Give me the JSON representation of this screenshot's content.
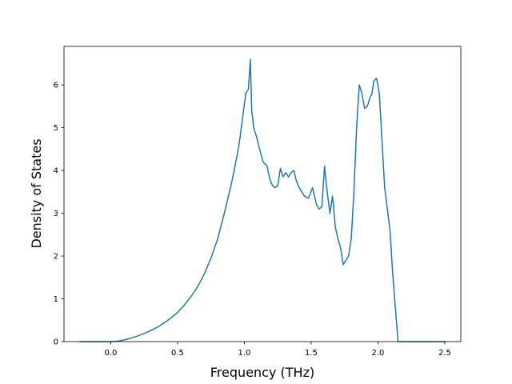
{
  "chart_data": {
    "type": "line",
    "title": "",
    "xlabel": "Frequency (THz)",
    "ylabel": "Density of States",
    "xlim": [
      -0.35,
      2.62
    ],
    "ylim": [
      0,
      6.9
    ],
    "xticks": [
      0.0,
      0.5,
      1.0,
      1.5,
      2.0,
      2.5
    ],
    "xtick_labels": [
      "0.0",
      "0.5",
      "1.0",
      "1.5",
      "2.0",
      "2.5"
    ],
    "yticks": [
      0,
      1,
      2,
      3,
      4,
      5,
      6
    ],
    "ytick_labels": [
      "0",
      "1",
      "2",
      "3",
      "4",
      "5",
      "6"
    ],
    "grid": false,
    "legend": "none",
    "line_color": "#1f77b4",
    "series": [
      {
        "x": [
          -0.23,
          -0.1,
          0.0,
          0.05,
          0.1,
          0.15,
          0.2,
          0.25,
          0.3,
          0.35,
          0.4,
          0.45,
          0.5,
          0.55,
          0.6,
          0.65,
          0.7,
          0.75,
          0.8,
          0.85,
          0.9,
          0.93,
          0.96,
          0.99,
          1.01,
          1.03,
          1.045,
          1.055,
          1.07,
          1.09,
          1.11,
          1.14,
          1.17,
          1.19,
          1.21,
          1.23,
          1.25,
          1.27,
          1.29,
          1.31,
          1.33,
          1.35,
          1.37,
          1.39,
          1.41,
          1.43,
          1.45,
          1.48,
          1.51,
          1.54,
          1.56,
          1.58,
          1.6,
          1.62,
          1.64,
          1.66,
          1.68,
          1.7,
          1.72,
          1.74,
          1.76,
          1.78,
          1.8,
          1.82,
          1.84,
          1.86,
          1.88,
          1.9,
          1.92,
          1.94,
          1.955,
          1.97,
          1.99,
          2.01,
          2.03,
          2.05,
          2.07,
          2.09,
          2.11,
          2.13,
          2.15,
          2.18,
          2.21,
          2.23,
          2.25,
          2.265,
          2.28,
          2.3,
          2.4,
          2.5
        ],
        "y": [
          0.0,
          0.0,
          0.0,
          0.01,
          0.04,
          0.08,
          0.13,
          0.19,
          0.26,
          0.34,
          0.44,
          0.55,
          0.68,
          0.85,
          1.05,
          1.28,
          1.58,
          1.95,
          2.4,
          3.0,
          3.65,
          4.1,
          4.6,
          5.3,
          5.8,
          5.9,
          6.6,
          5.4,
          5.0,
          4.8,
          4.55,
          4.2,
          4.1,
          3.8,
          3.65,
          3.6,
          3.65,
          4.05,
          3.85,
          3.95,
          3.85,
          3.95,
          4.0,
          3.75,
          3.6,
          3.5,
          3.4,
          3.35,
          3.6,
          3.2,
          3.1,
          3.15,
          4.1,
          3.5,
          3.0,
          3.4,
          2.7,
          2.4,
          2.2,
          1.8,
          1.9,
          2.0,
          2.4,
          3.5,
          5.0,
          6.0,
          5.8,
          5.45,
          5.5,
          5.7,
          5.8,
          6.1,
          6.15,
          5.8,
          4.7,
          3.6,
          3.1,
          2.6,
          1.6,
          0.8,
          0.0,
          0.0,
          0.0,
          0.0,
          0.0,
          0.0,
          0.0,
          0.0,
          0.0,
          0.0
        ]
      }
    ]
  }
}
